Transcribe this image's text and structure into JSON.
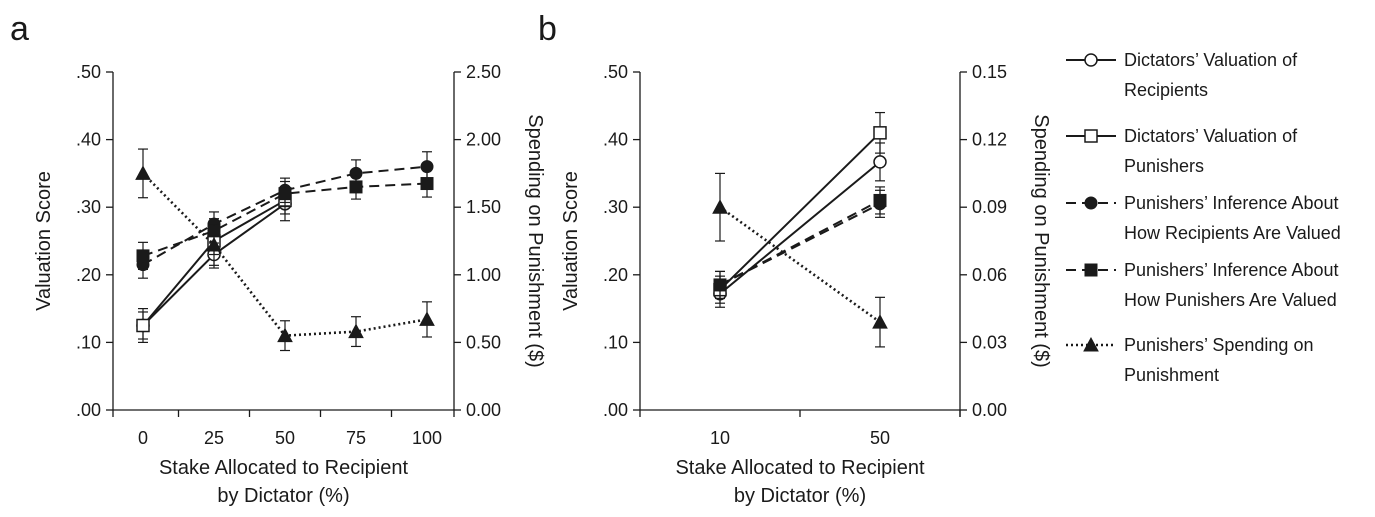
{
  "chart_data": [
    {
      "panel": "a",
      "type": "line",
      "xlabel": [
        "Stake Allocated to Recipient",
        "by Dictator (%)"
      ],
      "ylabel_left": "Valuation Score",
      "ylabel_right": "Spending on Punishment ($)",
      "x": [
        0,
        25,
        50,
        75,
        100
      ],
      "x_tick_labels": [
        "0",
        "25",
        "50",
        "75",
        "100"
      ],
      "ylim_left": [
        0,
        0.5
      ],
      "ylim_right": [
        0,
        2.5
      ],
      "y_left_ticks": [
        0,
        0.1,
        0.2,
        0.3,
        0.4,
        0.5
      ],
      "y_left_tick_labels": [
        ".00",
        ".10",
        ".20",
        ".30",
        ".40",
        ".50"
      ],
      "y_right_ticks": [
        0,
        0.5,
        1.0,
        1.5,
        2.0,
        2.5
      ],
      "y_right_tick_labels": [
        "0.00",
        "0.50",
        "1.00",
        "1.50",
        "2.00",
        "2.50"
      ],
      "series": [
        {
          "name": "Dictators’ Valuation of Recipients",
          "axis": "left",
          "x": [
            0,
            25,
            50
          ],
          "values": [
            0.125,
            0.23,
            0.305
          ],
          "errors": [
            0.025,
            0.02,
            0.025
          ],
          "style": "solid",
          "marker": "circle-open"
        },
        {
          "name": "Dictators’ Valuation of Punishers",
          "axis": "left",
          "x": [
            0,
            25,
            50
          ],
          "values": [
            0.125,
            0.25,
            0.31
          ],
          "errors": [
            0.02,
            0.02,
            0.02
          ],
          "style": "solid",
          "marker": "square-open"
        },
        {
          "name": "Punishers’ Inference About How Recipients Are Valued",
          "axis": "left",
          "x": [
            0,
            25,
            50,
            75,
            100
          ],
          "values": [
            0.215,
            0.275,
            0.325,
            0.35,
            0.36
          ],
          "errors": [
            0.02,
            0.018,
            0.018,
            0.02,
            0.022
          ],
          "style": "dashed",
          "marker": "circle-filled"
        },
        {
          "name": "Punishers’ Inference About How Punishers Are Valued",
          "axis": "left",
          "x": [
            0,
            25,
            50,
            75,
            100
          ],
          "values": [
            0.228,
            0.265,
            0.32,
            0.33,
            0.335
          ],
          "errors": [
            0.02,
            0.018,
            0.018,
            0.018,
            0.02
          ],
          "style": "dashed",
          "marker": "square-filled"
        },
        {
          "name": "Punishers’ Spending on Punishment",
          "axis": "right",
          "x": [
            0,
            25,
            50,
            75,
            100
          ],
          "values": [
            1.75,
            1.22,
            0.55,
            0.58,
            0.67
          ],
          "errors": [
            0.18,
            0.15,
            0.11,
            0.11,
            0.13
          ],
          "style": "dotted",
          "marker": "triangle-filled"
        }
      ]
    },
    {
      "panel": "b",
      "type": "line",
      "xlabel": [
        "Stake Allocated to Recipient",
        "by Dictator (%)"
      ],
      "ylabel_left": "Valuation Score",
      "ylabel_right": "Spending on Punishment ($)",
      "x": [
        10,
        50
      ],
      "x_tick_labels": [
        "10",
        "50"
      ],
      "ylim_left": [
        0,
        0.5
      ],
      "ylim_right": [
        0,
        0.15
      ],
      "y_left_ticks": [
        0,
        0.1,
        0.2,
        0.3,
        0.4,
        0.5
      ],
      "y_left_tick_labels": [
        ".00",
        ".10",
        ".20",
        ".30",
        ".40",
        ".50"
      ],
      "y_right_ticks": [
        0,
        0.03,
        0.06,
        0.09,
        0.12,
        0.15
      ],
      "y_right_tick_labels": [
        "0.00",
        "0.03",
        "0.06",
        "0.09",
        "0.12",
        "0.15"
      ],
      "series": [
        {
          "name": "Dictators’ Valuation of Recipients",
          "axis": "left",
          "x": [
            10,
            50
          ],
          "values": [
            0.172,
            0.367
          ],
          "errors": [
            0.02,
            0.028
          ],
          "style": "solid",
          "marker": "circle-open"
        },
        {
          "name": "Dictators’ Valuation of Punishers",
          "axis": "left",
          "x": [
            10,
            50
          ],
          "values": [
            0.178,
            0.41
          ],
          "errors": [
            0.02,
            0.03
          ],
          "style": "solid",
          "marker": "square-open"
        },
        {
          "name": "Punishers’ Inference About How Recipients Are Valued",
          "axis": "left",
          "x": [
            10,
            50
          ],
          "values": [
            0.185,
            0.305
          ],
          "errors": [
            0.02,
            0.02
          ],
          "style": "dashed",
          "marker": "circle-filled"
        },
        {
          "name": "Punishers’ Inference About How Punishers Are Valued",
          "axis": "left",
          "x": [
            10,
            50
          ],
          "values": [
            0.185,
            0.31
          ],
          "errors": [
            0.02,
            0.02
          ],
          "style": "dashed",
          "marker": "square-filled"
        },
        {
          "name": "Punishers’ Spending on Punishment",
          "axis": "right",
          "x": [
            10,
            50
          ],
          "values": [
            0.09,
            0.039
          ],
          "errors": [
            0.015,
            0.011
          ],
          "style": "dotted",
          "marker": "triangle-filled"
        }
      ]
    }
  ],
  "legend": {
    "placement": "right",
    "items": [
      {
        "lines": [
          "Dictators’ Valuation of",
          "Recipients"
        ],
        "style": "solid",
        "marker": "circle-open"
      },
      {
        "lines": [
          "Dictators’ Valuation of",
          "Punishers"
        ],
        "style": "solid",
        "marker": "square-open"
      },
      {
        "lines": [
          "Punishers’ Inference About",
          "How Recipients Are Valued"
        ],
        "style": "dashed",
        "marker": "circle-filled"
      },
      {
        "lines": [
          "Punishers’ Inference About",
          "How Punishers Are Valued"
        ],
        "style": "dashed",
        "marker": "square-filled"
      },
      {
        "lines": [
          "Punishers’ Spending on",
          "Punishment"
        ],
        "style": "dotted",
        "marker": "triangle-filled"
      }
    ]
  },
  "colors": {
    "ink": "#1a1a1a",
    "background": "#ffffff"
  }
}
